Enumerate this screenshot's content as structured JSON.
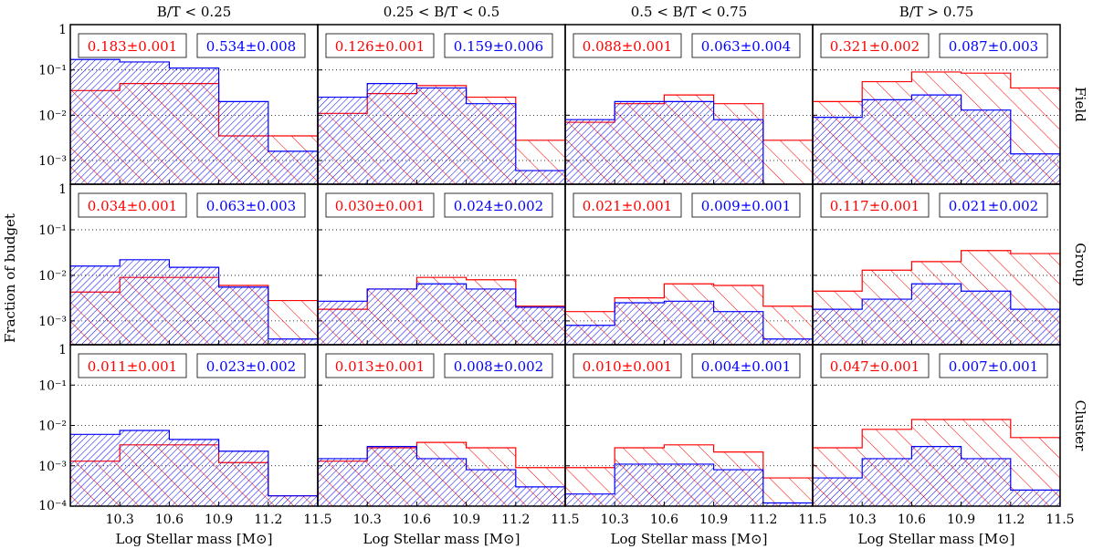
{
  "figure": {
    "ylabel": "Fraction of budget",
    "xlabel": "Log Stellar mass [M⊙]",
    "columns": [
      "B/T < 0.25",
      "0.25 < B/T < 0.5",
      "0.5 < B/T < 0.75",
      "B/T > 0.75"
    ],
    "rows": [
      "Field",
      "Group",
      "Cluster"
    ],
    "x_ticks": [
      "10.3",
      "10.6",
      "10.9",
      "11.2",
      "11.5"
    ],
    "colors": {
      "red": "#ff0000",
      "blue": "#0000ff"
    }
  },
  "chart_data": {
    "type": "step-histogram",
    "x_edges": [
      10.0,
      10.3,
      10.6,
      10.9,
      11.2,
      11.5
    ],
    "xlim": [
      10.0,
      11.5
    ],
    "yscale": "log",
    "ylim_row": {
      "Field": [
        0.0003,
        1
      ],
      "Group": [
        0.0003,
        1
      ],
      "Cluster": [
        0.0001,
        1
      ]
    },
    "y_ticks_row": {
      "Field": [
        "1",
        "10⁻¹",
        "10⁻²",
        "10⁻³"
      ],
      "Group": [
        "1",
        "10⁻¹",
        "10⁻²",
        "10⁻³"
      ],
      "Cluster": [
        "1",
        "10⁻¹",
        "10⁻²",
        "10⁻³",
        "10⁻⁴"
      ]
    },
    "grid": "dotted horizontal at decades",
    "panels": [
      {
        "row": "Field",
        "col": "B/T < 0.25",
        "red_label": "0.183±0.001",
        "blue_label": "0.534±0.008",
        "red": [
          0.035,
          0.05,
          0.05,
          0.0035,
          0.0035
        ],
        "blue": [
          0.17,
          0.15,
          0.11,
          0.02,
          0.0016
        ]
      },
      {
        "row": "Field",
        "col": "0.25 < B/T < 0.5",
        "red_label": "0.126±0.001",
        "blue_label": "0.159±0.006",
        "red": [
          0.011,
          0.03,
          0.045,
          0.025,
          0.0028
        ],
        "blue": [
          0.025,
          0.05,
          0.04,
          0.018,
          0.0006
        ]
      },
      {
        "row": "Field",
        "col": "0.5 < B/T < 0.75",
        "red_label": "0.088±0.001",
        "blue_label": "0.063±0.004",
        "red": [
          0.007,
          0.018,
          0.028,
          0.018,
          0.0028
        ],
        "blue": [
          0.008,
          0.02,
          0.02,
          0.008,
          0.0002
        ]
      },
      {
        "row": "Field",
        "col": "B/T > 0.75",
        "red_label": "0.321±0.002",
        "blue_label": "0.087±0.003",
        "red": [
          0.02,
          0.055,
          0.09,
          0.085,
          0.04
        ],
        "blue": [
          0.009,
          0.022,
          0.028,
          0.013,
          0.0014
        ]
      },
      {
        "row": "Group",
        "col": "B/T < 0.25",
        "red_label": "0.034±0.001",
        "blue_label": "0.063±0.003",
        "red": [
          0.0043,
          0.009,
          0.009,
          0.006,
          0.0028
        ],
        "blue": [
          0.016,
          0.022,
          0.015,
          0.0055,
          0.0004
        ]
      },
      {
        "row": "Group",
        "col": "0.25 < B/T < 0.5",
        "red_label": "0.030±0.001",
        "blue_label": "0.024±0.002",
        "red": [
          0.0018,
          0.005,
          0.009,
          0.008,
          0.0021
        ],
        "blue": [
          0.0027,
          0.005,
          0.0065,
          0.005,
          0.002
        ]
      },
      {
        "row": "Group",
        "col": "0.5 < B/T < 0.75",
        "red_label": "0.021±0.001",
        "blue_label": "0.009±0.001",
        "red": [
          0.0016,
          0.0032,
          0.0065,
          0.006,
          0.0021
        ],
        "blue": [
          0.0008,
          0.0025,
          0.0027,
          0.0016,
          0.0004
        ]
      },
      {
        "row": "Group",
        "col": "B/T > 0.75",
        "red_label": "0.117±0.001",
        "blue_label": "0.021±0.002",
        "red": [
          0.0045,
          0.013,
          0.02,
          0.035,
          0.03
        ],
        "blue": [
          0.0018,
          0.003,
          0.0065,
          0.0045,
          0.0018
        ]
      },
      {
        "row": "Cluster",
        "col": "B/T < 0.25",
        "red_label": "0.011±0.001",
        "blue_label": "0.023±0.002",
        "red": [
          0.0013,
          0.0033,
          0.0033,
          0.0012,
          0.00018
        ],
        "blue": [
          0.006,
          0.0075,
          0.0045,
          0.0023,
          0.00018
        ]
      },
      {
        "row": "Cluster",
        "col": "0.25 < B/T < 0.5",
        "red_label": "0.013±0.001",
        "blue_label": "0.008±0.002",
        "red": [
          0.0013,
          0.0028,
          0.0038,
          0.0028,
          0.0009
        ],
        "blue": [
          0.0015,
          0.003,
          0.0015,
          0.0008,
          0.0003
        ]
      },
      {
        "row": "Cluster",
        "col": "0.5 < B/T < 0.75",
        "red_label": "0.010±0.001",
        "blue_label": "0.004±0.001",
        "red": [
          0.0009,
          0.0028,
          0.0033,
          0.0022,
          0.0005
        ],
        "blue": [
          0.0002,
          0.0011,
          0.0011,
          0.0008,
          0.00012
        ]
      },
      {
        "row": "Cluster",
        "col": "B/T > 0.75",
        "red_label": "0.047±0.001",
        "blue_label": "0.007±0.001",
        "red": [
          0.0028,
          0.008,
          0.014,
          0.014,
          0.005
        ],
        "blue": [
          0.0005,
          0.0015,
          0.003,
          0.0015,
          0.00025
        ]
      }
    ]
  }
}
